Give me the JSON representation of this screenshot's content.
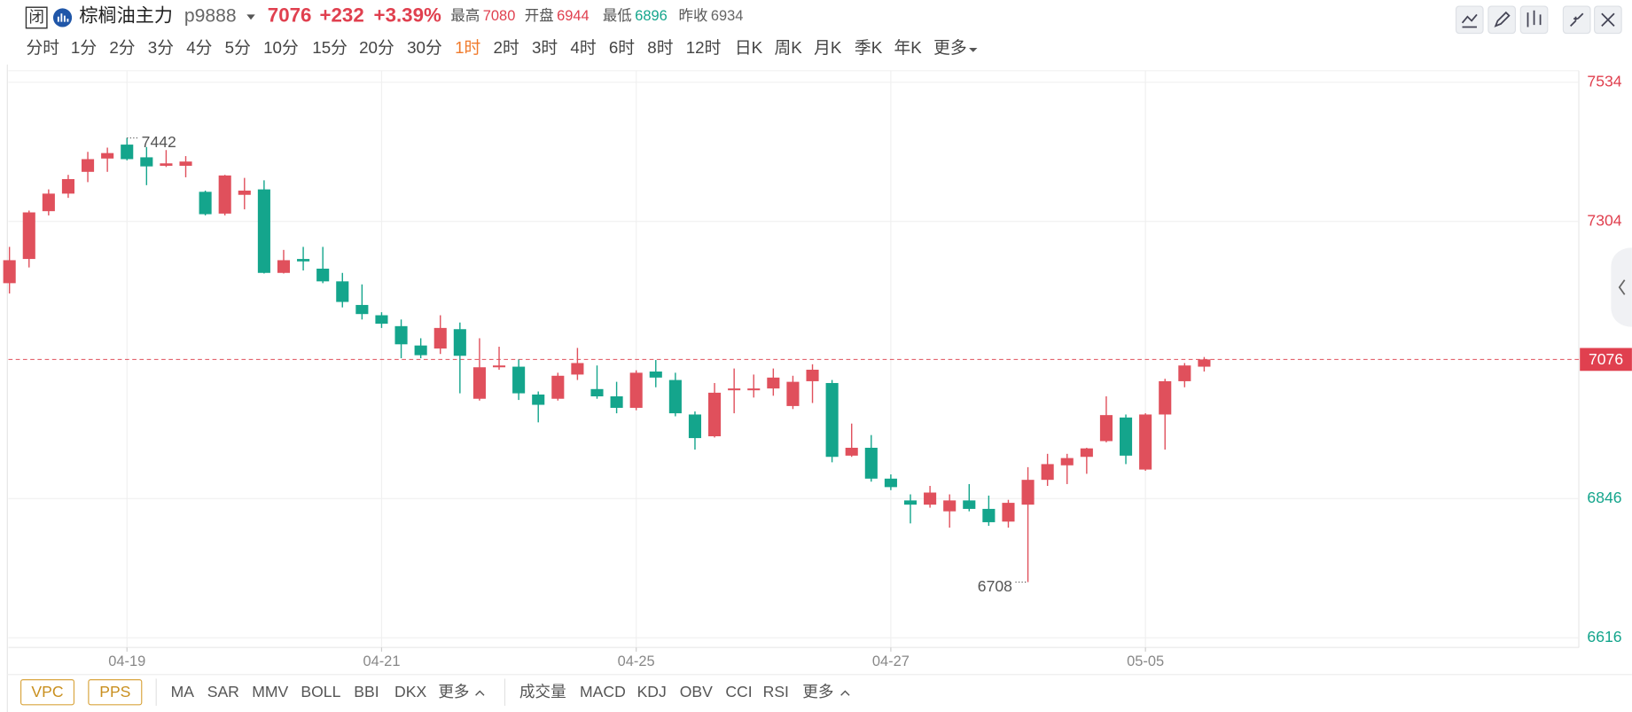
{
  "header": {
    "badge": "闭",
    "symbol": "棕榈油主力",
    "code": "p9888",
    "price": "7076",
    "change": "+232",
    "change_pct": "+3.39%",
    "stats": [
      {
        "label": "最高",
        "value": "7080"
      },
      {
        "label": "开盘",
        "value": "6944"
      },
      {
        "label": "最低",
        "value": "6896"
      },
      {
        "label": "昨收",
        "value": "6934"
      }
    ]
  },
  "timeframes": {
    "items": [
      "分时",
      "1分",
      "2分",
      "3分",
      "4分",
      "5分",
      "10分",
      "15分",
      "20分",
      "30分",
      "1时",
      "2时",
      "3时",
      "4时",
      "6时",
      "8时",
      "12时",
      "日K",
      "周K",
      "月K",
      "季K",
      "年K",
      "更多"
    ],
    "active": 10
  },
  "chart_data": {
    "type": "candlestick",
    "categories": [
      null,
      null,
      null,
      null,
      null,
      null,
      "04-19",
      null,
      null,
      null,
      null,
      null,
      null,
      null,
      null,
      null,
      null,
      null,
      null,
      "04-21",
      null,
      null,
      null,
      null,
      null,
      null,
      null,
      null,
      null,
      null,
      null,
      null,
      "04-25",
      null,
      null,
      null,
      null,
      null,
      null,
      null,
      null,
      null,
      null,
      null,
      null,
      "04-27",
      null,
      null,
      null,
      null,
      null,
      null,
      null,
      null,
      null,
      null,
      null,
      null,
      "05-05",
      null,
      null,
      null
    ],
    "open": [
      7202,
      7242,
      7321,
      7350,
      7386,
      7408,
      7431,
      7410,
      7396,
      7396,
      7353,
      7317,
      7348,
      7357,
      7219,
      7242,
      7226,
      7205,
      7166,
      7149,
      7131,
      7099,
      7094,
      7126,
      7011,
      7063,
      7064,
      7018,
      7011,
      7051,
      7027,
      7015,
      6996,
      7056,
      7042,
      6985,
      6949,
      7025,
      7025,
      7028,
      6999,
      7040,
      7037,
      6917,
      6930,
      6879,
      6843,
      6836,
      6825,
      6843,
      6829,
      6808,
      6836,
      6877,
      6901,
      6915,
      6941,
      6980,
      6894,
      6985,
      7040,
      7064
    ],
    "high": [
      7262,
      7322,
      7357,
      7381,
      7419,
      7426,
      7442,
      7427,
      7422,
      7412,
      7355,
      7381,
      7376,
      7372,
      7257,
      7262,
      7262,
      7219,
      7200,
      7154,
      7142,
      7111,
      7149,
      7137,
      7111,
      7097,
      7076,
      7023,
      7054,
      7095,
      7066,
      7039,
      7058,
      7075,
      7054,
      6990,
      7037,
      7061,
      7051,
      7061,
      7049,
      7068,
      7042,
      6970,
      6951,
      6886,
      6853,
      6867,
      6853,
      6870,
      6851,
      6844,
      6898,
      6920,
      6920,
      6930,
      7015,
      6985,
      6987,
      7044,
      7070,
      7080
    ],
    "low": [
      7185,
      7228,
      7314,
      7343,
      7369,
      7386,
      7405,
      7364,
      7394,
      7377,
      7314,
      7314,
      7324,
      7218,
      7218,
      7223,
      7202,
      7162,
      7142,
      7128,
      7078,
      7078,
      7085,
      7020,
      7008,
      7059,
      7009,
      6972,
      7008,
      7042,
      7011,
      6987,
      6992,
      7030,
      6982,
      6927,
      6947,
      6987,
      7013,
      7016,
      6994,
      7004,
      6906,
      6915,
      6874,
      6860,
      6805,
      6831,
      6798,
      6825,
      6801,
      6798,
      6708,
      6867,
      6870,
      6887,
      6939,
      6903,
      6892,
      6927,
      7030,
      7056
    ],
    "close": [
      7240,
      7319,
      7350,
      7374,
      7407,
      7417,
      7407,
      7395,
      7400,
      7403,
      7316,
      7380,
      7355,
      7219,
      7240,
      7238,
      7205,
      7171,
      7151,
      7135,
      7101,
      7083,
      7128,
      7082,
      7063,
      7066,
      7020,
      7001,
      7049,
      7070,
      7015,
      6996,
      7054,
      7046,
      6987,
      6946,
      7021,
      7028,
      7028,
      7046,
      7039,
      7059,
      6915,
      6930,
      6879,
      6865,
      6836,
      6856,
      6843,
      6829,
      6807,
      6839,
      6877,
      6903,
      6913,
      6929,
      6984,
      6917,
      6985,
      7040,
      7066,
      7076
    ],
    "up_color": "#e0505c",
    "down_color": "#14a58c",
    "last_price": 7076,
    "ylim": [
      6600,
      7553
    ],
    "yticks": [
      6616,
      6846,
      7304,
      7534
    ],
    "grid": true
  },
  "bottom_bar": {
    "overlays": [
      "VPC",
      "PPS"
    ],
    "main": [
      "MA",
      "SAR",
      "MMV",
      "BOLL",
      "BBI",
      "DKX",
      "更多"
    ],
    "sub": [
      "成交量",
      "MACD",
      "KDJ",
      "OBV",
      "CCI",
      "RSI",
      "更多"
    ]
  }
}
